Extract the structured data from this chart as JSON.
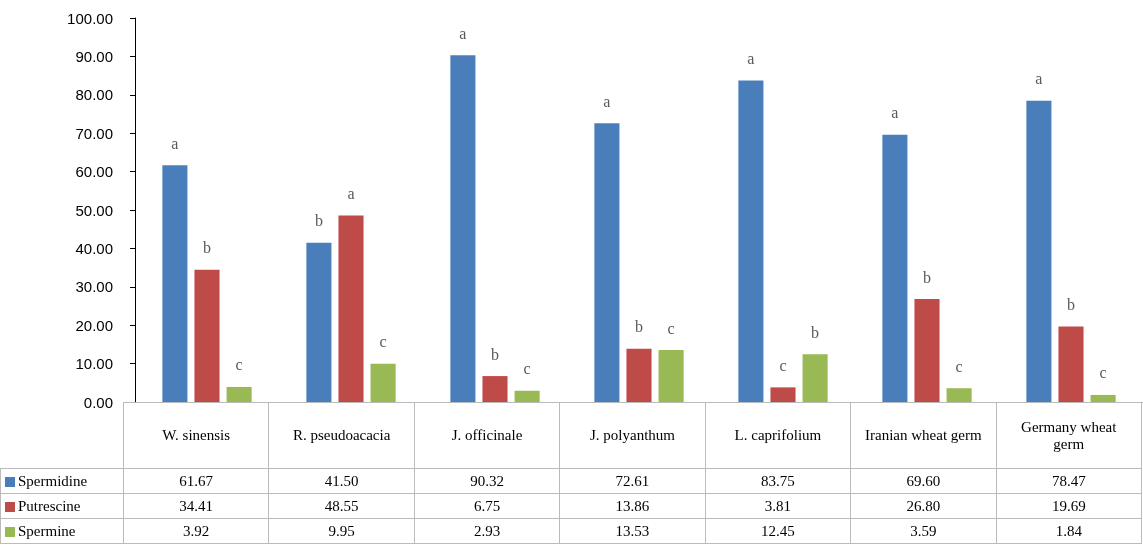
{
  "chart_data": {
    "type": "bar",
    "categories": [
      "W. sinensis",
      "R. pseudoacacia",
      "J. officinale",
      "J. polyanthum",
      "L. caprifolium",
      "Iranian wheat germ",
      "Germany wheat germ"
    ],
    "series": [
      {
        "name": "Spermidine",
        "color": "#4a7ebb",
        "values": [
          61.67,
          41.5,
          90.32,
          72.61,
          83.75,
          69.6,
          78.47
        ],
        "value_labels": [
          "61.67",
          "41.50",
          "90.32",
          "72.61",
          "83.75",
          "69.60",
          "78.47"
        ]
      },
      {
        "name": "Putrescine",
        "color": "#be4b48",
        "values": [
          34.41,
          48.55,
          6.75,
          13.86,
          3.81,
          26.8,
          19.69
        ],
        "value_labels": [
          "34.41",
          "48.55",
          "6.75",
          "13.86",
          "3.81",
          "26.80",
          "19.69"
        ]
      },
      {
        "name": "Spermine",
        "color": "#98b954",
        "values": [
          3.92,
          9.95,
          2.93,
          13.53,
          12.45,
          3.59,
          1.84
        ],
        "value_labels": [
          "3.92",
          "9.95",
          "2.93",
          "13.53",
          "12.45",
          "3.59",
          "1.84"
        ]
      }
    ],
    "ylim": [
      0,
      100
    ],
    "yticks": [
      {
        "value": 0,
        "label": "0.00"
      },
      {
        "value": 10,
        "label": "10.00"
      },
      {
        "value": 20,
        "label": "20.00"
      },
      {
        "value": 30,
        "label": "30.00"
      },
      {
        "value": 40,
        "label": "40.00"
      },
      {
        "value": 50,
        "label": "50.00"
      },
      {
        "value": 60,
        "label": "60.00"
      },
      {
        "value": 70,
        "label": "70.00"
      },
      {
        "value": 80,
        "label": "80.00"
      },
      {
        "value": 90,
        "label": "90.00"
      },
      {
        "value": 100,
        "label": "100.00"
      }
    ],
    "grid": false,
    "legend": "bottom",
    "annotations": [
      "a",
      "b",
      "c",
      "b",
      "a",
      "c",
      "a",
      "b",
      "c",
      "a",
      "b",
      "c",
      "a",
      "c",
      "b",
      "a",
      "b",
      "c",
      "a",
      "b",
      "c"
    ]
  }
}
